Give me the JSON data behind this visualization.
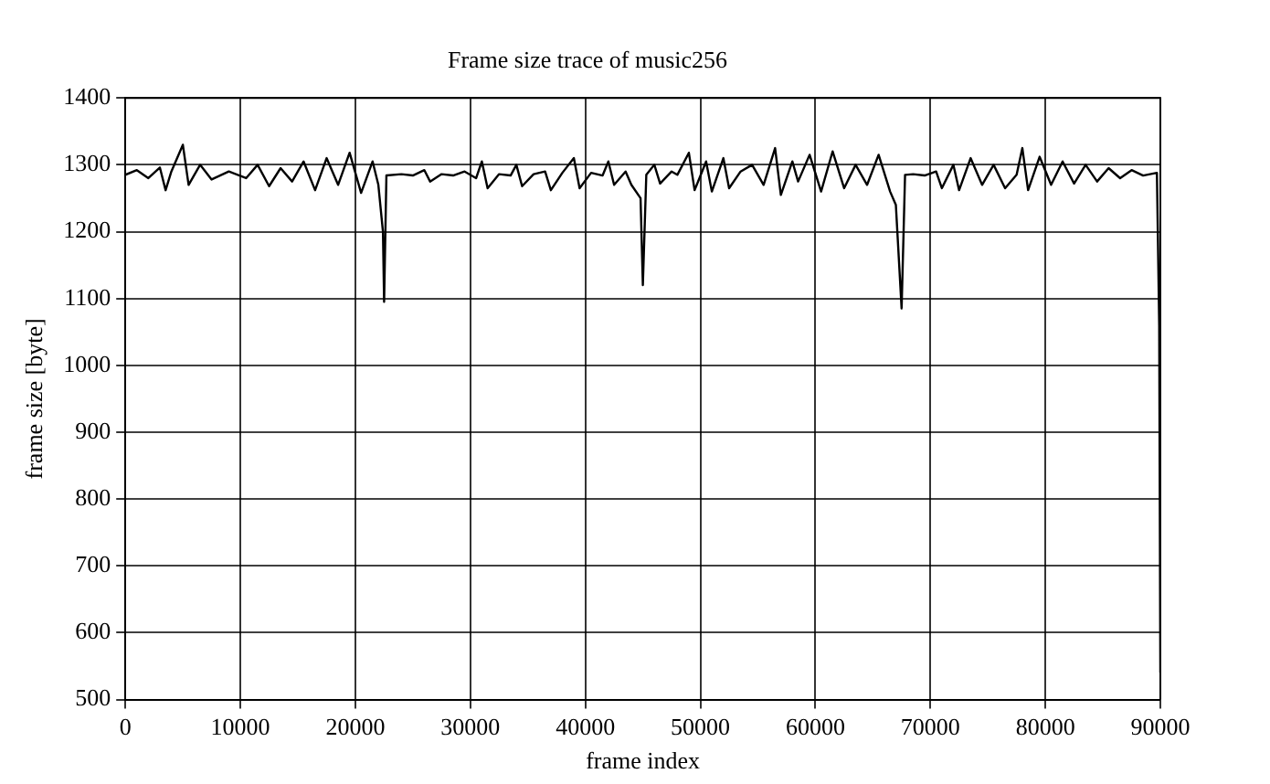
{
  "chart_data": {
    "type": "line",
    "title": "Frame size trace of music256",
    "xlabel": "frame index",
    "ylabel": "frame size [byte]",
    "x": [
      0,
      1000,
      2000,
      3000,
      3500,
      4000,
      5000,
      5500,
      6500,
      7500,
      9000,
      10500,
      11500,
      12500,
      13500,
      14500,
      15500,
      16500,
      17500,
      18500,
      19500,
      20500,
      21500,
      22000,
      22400,
      22500,
      22700,
      24000,
      25000,
      26000,
      26500,
      27500,
      28500,
      29500,
      30500,
      31000,
      31500,
      32500,
      33500,
      34000,
      34500,
      35500,
      36500,
      37000,
      38000,
      39000,
      39500,
      40500,
      41500,
      42000,
      42500,
      43500,
      44000,
      44800,
      45000,
      45300,
      46000,
      46500,
      47500,
      48000,
      49000,
      49500,
      50500,
      51000,
      52000,
      52500,
      53500,
      54500,
      55500,
      56500,
      57000,
      58000,
      58500,
      59500,
      60500,
      61500,
      62500,
      63500,
      64500,
      65500,
      66500,
      67000,
      67500,
      67800,
      68500,
      69500,
      70500,
      71000,
      72000,
      72500,
      73500,
      74500,
      75500,
      76500,
      77500,
      78000,
      78500,
      79500,
      80500,
      81500,
      82500,
      83500,
      84500,
      85500,
      86500,
      87500,
      88500,
      89700,
      89900,
      90000
    ],
    "series": [
      {
        "color": "#000000",
        "values": [
          1285,
          1292,
          1280,
          1296,
          1262,
          1290,
          1330,
          1270,
          1300,
          1278,
          1290,
          1280,
          1300,
          1268,
          1295,
          1275,
          1305,
          1262,
          1310,
          1270,
          1318,
          1258,
          1305,
          1270,
          1200,
          1095,
          1284,
          1286,
          1284,
          1292,
          1275,
          1286,
          1284,
          1290,
          1280,
          1305,
          1265,
          1286,
          1284,
          1300,
          1268,
          1286,
          1290,
          1262,
          1288,
          1310,
          1265,
          1288,
          1284,
          1305,
          1270,
          1290,
          1270,
          1250,
          1120,
          1285,
          1300,
          1272,
          1290,
          1285,
          1318,
          1262,
          1305,
          1260,
          1310,
          1265,
          1290,
          1300,
          1270,
          1325,
          1255,
          1305,
          1275,
          1315,
          1260,
          1320,
          1265,
          1300,
          1270,
          1315,
          1260,
          1240,
          1085,
          1285,
          1286,
          1284,
          1290,
          1265,
          1300,
          1262,
          1310,
          1270,
          1300,
          1265,
          1285,
          1325,
          1262,
          1312,
          1270,
          1305,
          1272,
          1300,
          1275,
          1295,
          1280,
          1292,
          1284,
          1288,
          1060,
          540
        ]
      }
    ],
    "xlim": [
      0,
      90000
    ],
    "xticks": [
      0,
      10000,
      20000,
      30000,
      40000,
      50000,
      60000,
      70000,
      80000,
      90000
    ],
    "ylim": [
      500,
      1400
    ],
    "yticks": [
      500,
      600,
      700,
      800,
      900,
      1000,
      1100,
      1200,
      1300,
      1400
    ],
    "grid": true,
    "legend": false,
    "marker": "none",
    "line_style": "solid"
  }
}
